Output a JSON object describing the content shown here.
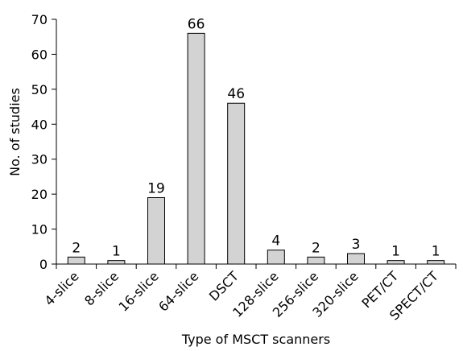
{
  "chart_data": {
    "type": "bar",
    "title": "",
    "xlabel": "Type of MSCT scanners",
    "ylabel": "No. of studies",
    "ylim": [
      0,
      70
    ],
    "yticks": [
      0,
      10,
      20,
      30,
      40,
      50,
      60,
      70
    ],
    "categories": [
      "4-slice",
      "8-slice",
      "16-slice",
      "64-slice",
      "DSCT",
      "128-slice",
      "256-slice",
      "320-slice",
      "PET/CT",
      "SPECT/CT"
    ],
    "values": [
      2,
      1,
      19,
      66,
      46,
      4,
      2,
      3,
      1,
      1
    ],
    "data_labels": [
      "2",
      "1",
      "19",
      "66",
      "46",
      "4",
      "2",
      "3",
      "1",
      "1"
    ],
    "bar_color": "#d3d3d3",
    "grid": false,
    "legend": "none"
  }
}
